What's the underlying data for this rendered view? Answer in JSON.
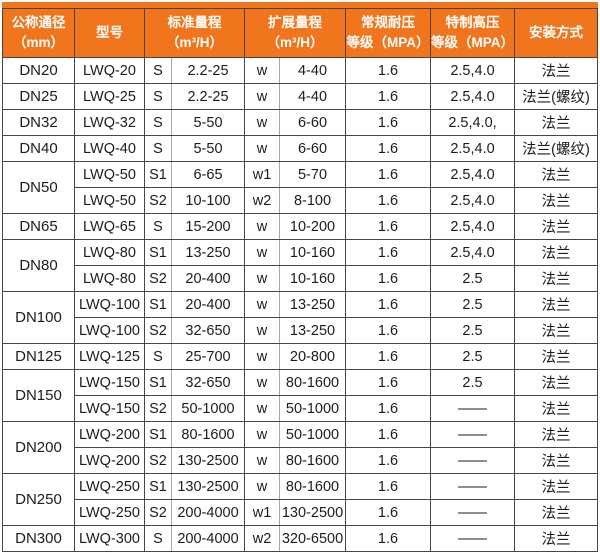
{
  "colors": {
    "header_bg": "#f0751d",
    "header_text": "#ffffff",
    "body_text": "#1c1c1c",
    "border_dark": "#454545",
    "border_light": "#a8a8a8",
    "page_bg": "#ffffff"
  },
  "table": {
    "header": {
      "dn": [
        "公称通径",
        "（mm）"
      ],
      "model": "型号",
      "standard": [
        "标准量程",
        "（m³/H）"
      ],
      "extended": [
        "扩展量程",
        "（m³/H）"
      ],
      "regular": [
        "常规耐压",
        "等级（MPA）"
      ],
      "special": [
        "特制高压",
        "等级（MPA）"
      ],
      "install": "安装方式"
    },
    "row_keys": [
      "model",
      "s",
      "s_range",
      "w",
      "w_range",
      "pn",
      "pn_high",
      "install"
    ],
    "rows": [
      {
        "dn": "DN20",
        "dn_span": 1,
        "model": "LWQ-20",
        "s": "S",
        "s_range": "2.2-25",
        "w": "w",
        "w_range": "4-40",
        "pn": "1.6",
        "pn_high": "2.5,4.0",
        "install": "法兰"
      },
      {
        "dn": "DN25",
        "dn_span": 1,
        "model": "LWQ-25",
        "s": "S",
        "s_range": "2.2-25",
        "w": "w",
        "w_range": "4-40",
        "pn": "1.6",
        "pn_high": "2.5,4.0",
        "install": "法兰(螺纹)"
      },
      {
        "dn": "DN32",
        "dn_span": 1,
        "model": "LWQ-32",
        "s": "S",
        "s_range": "5-50",
        "w": "w",
        "w_range": "6-60",
        "pn": "1.6",
        "pn_high": "2.5,4.0,",
        "install": "法兰"
      },
      {
        "dn": "DN40",
        "dn_span": 1,
        "model": "LWQ-40",
        "s": "S",
        "s_range": "5-50",
        "w": "w",
        "w_range": "6-60",
        "pn": "1.6",
        "pn_high": "2.5,4.0",
        "install": "法兰(螺纹)"
      },
      {
        "dn": "DN50",
        "dn_span": 2,
        "model": "LWQ-50",
        "s": "S1",
        "s_range": "6-65",
        "w": "w1",
        "w_range": "5-70",
        "pn": "1.6",
        "pn_high": "2.5,4.0",
        "install": "法兰"
      },
      {
        "dn": null,
        "model": "LWQ-50",
        "s": "S2",
        "s_range": "10-100",
        "w": "w2",
        "w_range": "8-100",
        "pn": "1.6",
        "pn_high": "2.5,4.0",
        "install": "法兰"
      },
      {
        "dn": "DN65",
        "dn_span": 1,
        "model": "LWQ-65",
        "s": "S",
        "s_range": "15-200",
        "w": "w",
        "w_range": "10-200",
        "pn": "1.6",
        "pn_high": "2.5,4.0",
        "install": "法兰"
      },
      {
        "dn": "DN80",
        "dn_span": 2,
        "model": "LWQ-80",
        "s": "S1",
        "s_range": "13-250",
        "w": "w",
        "w_range": "10-160",
        "pn": "1.6",
        "pn_high": "2.5,4.0",
        "install": "法兰"
      },
      {
        "dn": null,
        "model": "LWQ-80",
        "s": "S2",
        "s_range": "20-400",
        "w": "w",
        "w_range": "10-160",
        "pn": "1.6",
        "pn_high": "2.5",
        "install": "法兰"
      },
      {
        "dn": "DN100",
        "dn_span": 2,
        "model": "LWQ-100",
        "s": "S1",
        "s_range": "20-400",
        "w": "w",
        "w_range": "13-250",
        "pn": "1.6",
        "pn_high": "2.5",
        "install": "法兰"
      },
      {
        "dn": null,
        "model": "LWQ-100",
        "s": "S2",
        "s_range": "32-650",
        "w": "w",
        "w_range": "13-250",
        "pn": "1.6",
        "pn_high": "2.5",
        "install": "法兰"
      },
      {
        "dn": "DN125",
        "dn_span": 1,
        "model": "LWQ-125",
        "s": "S",
        "s_range": "25-700",
        "w": "w",
        "w_range": "20-800",
        "pn": "1.6",
        "pn_high": "2.5",
        "install": "法兰"
      },
      {
        "dn": "DN150",
        "dn_span": 2,
        "model": "LWQ-150",
        "s": "S1",
        "s_range": "32-650",
        "w": "w",
        "w_range": "80-1600",
        "pn": "1.6",
        "pn_high": "2.5",
        "install": "法兰"
      },
      {
        "dn": null,
        "model": "LWQ-150",
        "s": "S2",
        "s_range": "50-1000",
        "w": "w",
        "w_range": "50-1000",
        "pn": "1.6",
        "pn_high": "——",
        "install": "法兰"
      },
      {
        "dn": "DN200",
        "dn_span": 2,
        "model": "LWQ-200",
        "s": "S1",
        "s_range": "80-1600",
        "w": "w",
        "w_range": "50-1000",
        "pn": "1.6",
        "pn_high": "——",
        "install": "法兰"
      },
      {
        "dn": null,
        "model": "LWQ-200",
        "s": "S2",
        "s_range": "130-2500",
        "w": "w",
        "w_range": "80-1600",
        "pn": "1.6",
        "pn_high": "——",
        "install": "法兰"
      },
      {
        "dn": "DN250",
        "dn_span": 2,
        "model": "LWQ-250",
        "s": "S1",
        "s_range": "130-2500",
        "w": "w",
        "w_range": "80-1600",
        "pn": "1.6",
        "pn_high": "——",
        "install": "法兰"
      },
      {
        "dn": null,
        "model": "LWQ-250",
        "s": "S2",
        "s_range": "200-4000",
        "w": "w1",
        "w_range": "130-2500",
        "pn": "1.6",
        "pn_high": "——",
        "install": "法兰"
      },
      {
        "dn": "DN300",
        "dn_span": 1,
        "model": "LWQ-300",
        "s": "S",
        "s_range": "200-4000",
        "w": "w2",
        "w_range": "320-6500",
        "pn": "1.6",
        "pn_high": "——",
        "install": "法兰"
      }
    ]
  }
}
